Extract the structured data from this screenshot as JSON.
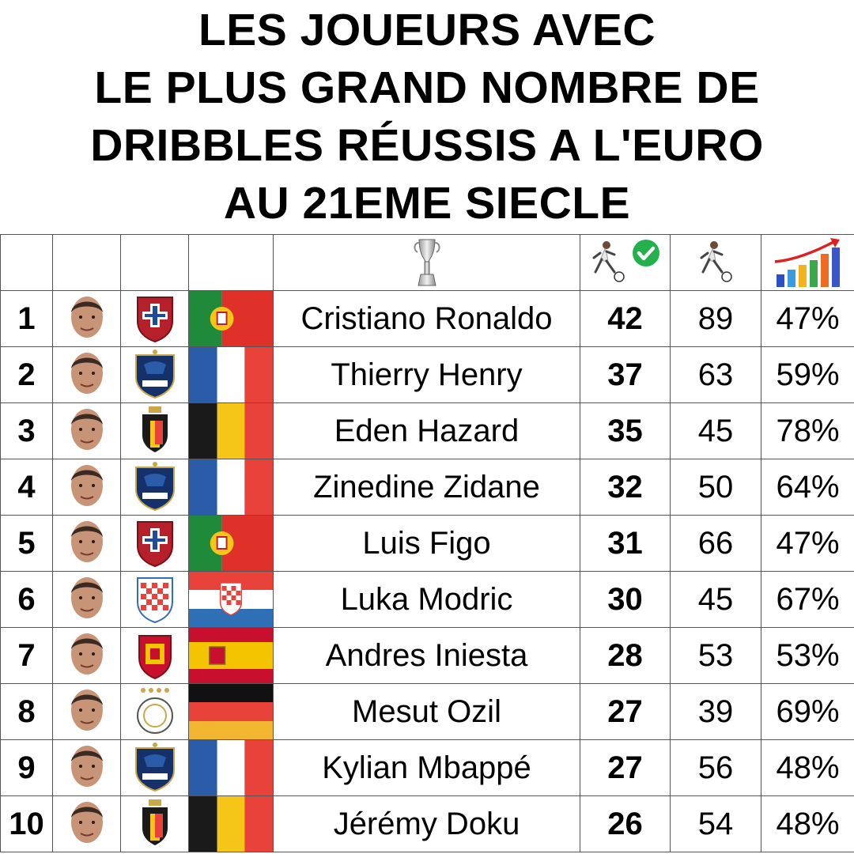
{
  "title_lines": [
    "LES JOUEURS AVEC",
    "LE PLUS GRAND NOMBRE DE",
    "DRIBBLES RÉUSSIS A L'EURO",
    "AU 21EME SIECLE"
  ],
  "header_icons": {
    "trophy": "euro-trophy-icon",
    "successful": "footballer-dribbling-check-icon",
    "attempted": "footballer-dribbling-icon",
    "rate": "bar-chart-growth-icon"
  },
  "colors": {
    "check_green": "#22b14c",
    "border": "#555555",
    "france_blue": "#2a5caa",
    "france_red": "#e8423a",
    "portugal_green": "#1f8a3a",
    "portugal_red": "#e0302a",
    "belgium_yellow": "#f5c518",
    "belgium_red": "#e8423a",
    "croatia_red": "#e8423a",
    "croatia_blue": "#2f6fb5",
    "spain_red": "#c8102e",
    "spain_yellow": "#f5c400",
    "germany_gold": "#f2b630"
  },
  "chart_data": {
    "type": "table",
    "title": "LES JOUEURS AVEC LE PLUS GRAND NOMBRE DE DRIBBLES RÉUSSIS A L'EURO AU 21EME SIECLE",
    "rows": [
      {
        "rank": "1",
        "name": "Cristiano Ronaldo",
        "country": "portugal",
        "successful": "42",
        "attempted": "89",
        "rate": "47%"
      },
      {
        "rank": "2",
        "name": "Thierry Henry",
        "country": "france",
        "successful": "37",
        "attempted": "63",
        "rate": "59%"
      },
      {
        "rank": "3",
        "name": "Eden Hazard",
        "country": "belgium",
        "successful": "35",
        "attempted": "45",
        "rate": "78%"
      },
      {
        "rank": "4",
        "name": "Zinedine Zidane",
        "country": "france",
        "successful": "32",
        "attempted": "50",
        "rate": "64%"
      },
      {
        "rank": "5",
        "name": "Luis Figo",
        "country": "portugal",
        "successful": "31",
        "attempted": "66",
        "rate": "47%"
      },
      {
        "rank": "6",
        "name": "Luka Modric",
        "country": "croatia",
        "successful": "30",
        "attempted": "45",
        "rate": "67%"
      },
      {
        "rank": "7",
        "name": "Andres Iniesta",
        "country": "spain",
        "successful": "28",
        "attempted": "53",
        "rate": "53%"
      },
      {
        "rank": "8",
        "name": "Mesut Ozil",
        "country": "germany",
        "successful": "27",
        "attempted": "39",
        "rate": "69%"
      },
      {
        "rank": "9",
        "name": "Kylian Mbappé",
        "country": "france",
        "successful": "27",
        "attempted": "56",
        "rate": "48%"
      },
      {
        "rank": "10",
        "name": "Jérémy Doku",
        "country": "belgium",
        "successful": "26",
        "attempted": "54",
        "rate": "48%"
      }
    ]
  }
}
